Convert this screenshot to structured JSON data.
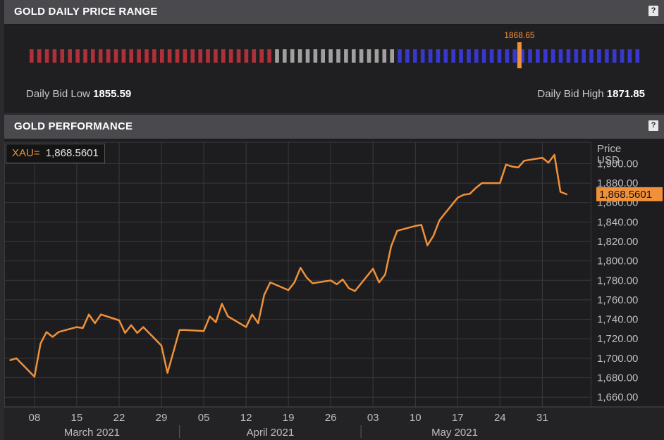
{
  "range_panel": {
    "title": "GOLD DAILY PRICE RANGE",
    "help_label": "?",
    "low": 1855.59,
    "high": 1871.85,
    "current": 1868.65,
    "current_label": "1868.65",
    "low_label": "Daily Bid Low",
    "low_value": "1855.59",
    "high_label": "Daily Bid High",
    "high_value": "1871.85",
    "colors": {
      "low": "#b0303a",
      "mid": "#a0a0a0",
      "high": "#3838d0",
      "marker": "#f0913a"
    }
  },
  "perf_panel": {
    "title": "GOLD PERFORMANCE",
    "help_label": "?",
    "legend_ric": "XAU=",
    "legend_value": "1,868.5601",
    "axis_title_line1": "Price",
    "axis_title_line2": "USD"
  },
  "chart_data": {
    "type": "line",
    "series": [
      {
        "name": "XAU=",
        "color": "#f0913a",
        "x": [
          "2021-03-04",
          "2021-03-05",
          "2021-03-08",
          "2021-03-09",
          "2021-03-10",
          "2021-03-11",
          "2021-03-12",
          "2021-03-15",
          "2021-03-16",
          "2021-03-17",
          "2021-03-18",
          "2021-03-19",
          "2021-03-22",
          "2021-03-23",
          "2021-03-24",
          "2021-03-25",
          "2021-03-26",
          "2021-03-29",
          "2021-03-30",
          "2021-03-31",
          "2021-04-01",
          "2021-04-02",
          "2021-04-05",
          "2021-04-06",
          "2021-04-07",
          "2021-04-08",
          "2021-04-09",
          "2021-04-12",
          "2021-04-13",
          "2021-04-14",
          "2021-04-15",
          "2021-04-16",
          "2021-04-19",
          "2021-04-20",
          "2021-04-21",
          "2021-04-22",
          "2021-04-23",
          "2021-04-26",
          "2021-04-27",
          "2021-04-28",
          "2021-04-29",
          "2021-04-30",
          "2021-05-03",
          "2021-05-04",
          "2021-05-05",
          "2021-05-06",
          "2021-05-07",
          "2021-05-10",
          "2021-05-11",
          "2021-05-12",
          "2021-05-13",
          "2021-05-14",
          "2021-05-17",
          "2021-05-18",
          "2021-05-19",
          "2021-05-20",
          "2021-05-21",
          "2021-05-24",
          "2021-05-25",
          "2021-05-26",
          "2021-05-27",
          "2021-05-28",
          "2021-05-31",
          "2021-06-01",
          "2021-06-02",
          "2021-06-03",
          "2021-06-04"
        ],
        "y": [
          1698,
          1700,
          1681,
          1715,
          1727,
          1722,
          1727,
          1732,
          1731,
          1745,
          1736,
          1745,
          1739,
          1726,
          1734,
          1726,
          1732,
          1713,
          1685,
          1707,
          1729,
          1729,
          1728,
          1743,
          1737,
          1756,
          1743,
          1732,
          1745,
          1736,
          1765,
          1778,
          1770,
          1778,
          1793,
          1783,
          1777,
          1780,
          1776,
          1781,
          1772,
          1769,
          1792,
          1778,
          1786,
          1815,
          1831,
          1836,
          1837,
          1816,
          1826,
          1842,
          1865,
          1868,
          1869,
          1875,
          1880,
          1880,
          1899,
          1897,
          1896,
          1903,
          1906,
          1901,
          1909,
          1871,
          1868.5601
        ]
      }
    ],
    "x_ticks": [
      {
        "date": "2021-03-08",
        "label": "08"
      },
      {
        "date": "2021-03-15",
        "label": "15"
      },
      {
        "date": "2021-03-22",
        "label": "22"
      },
      {
        "date": "2021-03-29",
        "label": "29"
      },
      {
        "date": "2021-04-05",
        "label": "05"
      },
      {
        "date": "2021-04-12",
        "label": "12"
      },
      {
        "date": "2021-04-19",
        "label": "19"
      },
      {
        "date": "2021-04-26",
        "label": "26"
      },
      {
        "date": "2021-05-03",
        "label": "03"
      },
      {
        "date": "2021-05-10",
        "label": "10"
      },
      {
        "date": "2021-05-17",
        "label": "17"
      },
      {
        "date": "2021-05-24",
        "label": "24"
      },
      {
        "date": "2021-05-31",
        "label": "31"
      }
    ],
    "months": [
      {
        "label": "March 2021",
        "start": "2021-03-01",
        "end": "2021-04-01"
      },
      {
        "label": "April 2021",
        "start": "2021-04-01",
        "end": "2021-05-01"
      },
      {
        "label": "May 2021",
        "start": "2021-05-01",
        "end": "2021-06-01"
      }
    ],
    "xlim": [
      "2021-03-03",
      "2021-06-08"
    ],
    "ylim": [
      1650,
      1922
    ],
    "y_ticks": [
      1660,
      1680,
      1700,
      1720,
      1740,
      1760,
      1780,
      1800,
      1820,
      1840,
      1860,
      1880,
      1900
    ],
    "y_tick_labels": [
      "1,660.00",
      "1,680.00",
      "1,700.00",
      "1,720.00",
      "1,740.00",
      "1,760.00",
      "1,780.00",
      "1,800.00",
      "1,820.00",
      "1,840.00",
      "1,860.00",
      "1,880.00",
      "1,900.00"
    ],
    "last_value_label": "1,868.5601",
    "ylabel": "Price USD",
    "grid": true,
    "legend": "top-left"
  }
}
